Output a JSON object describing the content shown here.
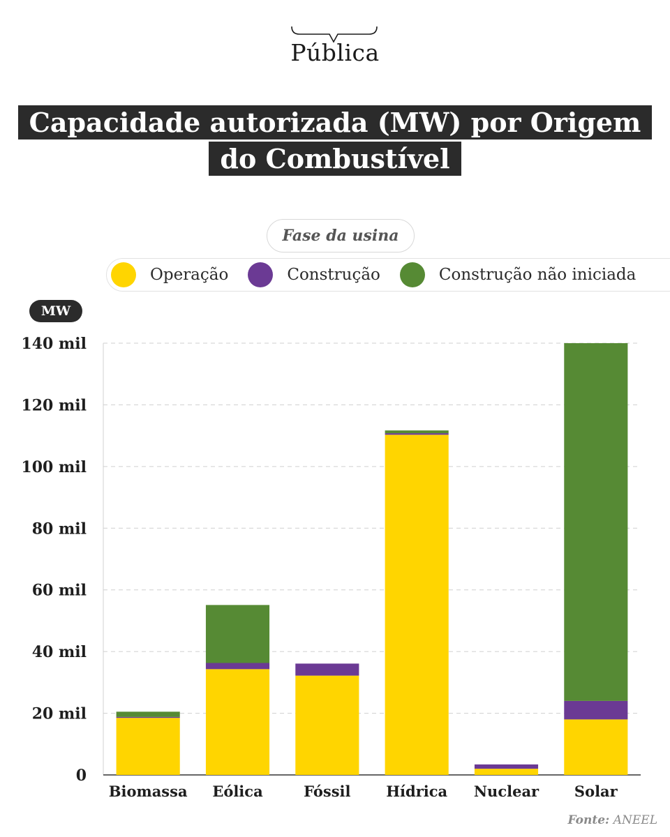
{
  "brand": {
    "name": "Pública"
  },
  "title": {
    "line1": "Capacidade autorizada (MW) por Origem",
    "line2": "do Combustível"
  },
  "legend": {
    "title": "Fase da usina",
    "items": [
      {
        "label": "Operação",
        "color": "#FFD500"
      },
      {
        "label": "Construção",
        "color": "#6B3A94"
      },
      {
        "label": "Construção não iniciada",
        "color": "#568A34"
      }
    ]
  },
  "unit_badge": "MW",
  "source": {
    "label": "Fonte:",
    "value": "ANEEL"
  },
  "chart_data": {
    "type": "bar",
    "stacked": true,
    "title": "Capacidade autorizada (MW) por Origem do Combustível",
    "ylabel": "MW",
    "xlabel": "",
    "ylim": [
      0,
      140000
    ],
    "y_ticks": [
      0,
      20000,
      40000,
      60000,
      80000,
      100000,
      120000,
      140000
    ],
    "y_tick_labels": [
      "0",
      "20 mil",
      "40 mil",
      "60 mil",
      "80 mil",
      "100 mil",
      "120 mil",
      "140 mil"
    ],
    "grid": true,
    "categories": [
      "Biomassa",
      "Eólica",
      "Fóssil",
      "Hídrica",
      "Nuclear",
      "Solar"
    ],
    "series": [
      {
        "name": "Operação",
        "color": "#FFD500",
        "values": [
          18500,
          34300,
          32200,
          110300,
          2000,
          18000
        ]
      },
      {
        "name": "Construção",
        "color": "#6B3A94",
        "values": [
          300,
          2000,
          3900,
          500,
          1400,
          6000
        ]
      },
      {
        "name": "Construção não iniciada",
        "color": "#568A34",
        "values": [
          1700,
          18800,
          0,
          900,
          0,
          116000
        ]
      }
    ]
  }
}
